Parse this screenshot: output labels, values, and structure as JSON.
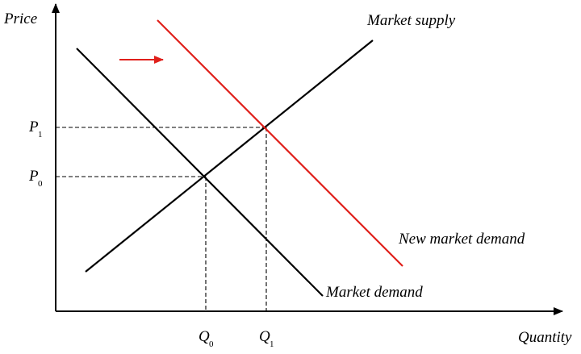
{
  "axes": {
    "y_label": "Price",
    "x_label": "Quantity"
  },
  "curves": {
    "supply_label": "Market supply",
    "demand_label": "Market demand",
    "new_demand_label": "New market demand"
  },
  "ticks": {
    "p1": {
      "main": "P",
      "sub": "1"
    },
    "p0": {
      "main": "P",
      "sub": "0"
    },
    "q0": {
      "main": "Q",
      "sub": "0"
    },
    "q1": {
      "main": "Q",
      "sub": "1"
    }
  },
  "colors": {
    "axis": "#000000",
    "supply": "#000000",
    "demand": "#000000",
    "new_demand": "#e0201b",
    "shift_arrow": "#e0201b",
    "guides": "#000000"
  }
}
